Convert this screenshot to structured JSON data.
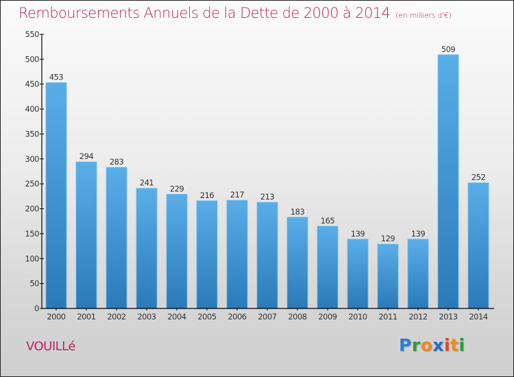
{
  "header": {
    "title": "Remboursements Annuels de la Dette de 2000 à 2014",
    "subtitle": "(en milliers d'€)"
  },
  "footer": {
    "commune": "VOUILLé",
    "logo": {
      "letters": [
        {
          "char": "P",
          "color": "#2a7fd4"
        },
        {
          "char": "r",
          "color": "#2a9a3a"
        },
        {
          "char": "o",
          "color": "#f08a1c"
        },
        {
          "char": "x",
          "color": "#1e6fc8"
        },
        {
          "char": "i",
          "color": "#e8481c"
        },
        {
          "char": "t",
          "color": "#f08a1c"
        },
        {
          "char": "i",
          "color": "#2a9a3a"
        }
      ]
    }
  },
  "colors": {
    "title": "#b8265e",
    "bar_top": "#5aaee8",
    "bar_bottom": "#2a7ab8",
    "axis": "#000000",
    "label": "#333333"
  },
  "chart_data": {
    "type": "bar",
    "title": "Remboursements Annuels de la Dette de 2000 à 2014",
    "subtitle": "(en milliers d'€)",
    "xlabel": "",
    "ylabel": "",
    "categories": [
      "2000",
      "2001",
      "2002",
      "2003",
      "2004",
      "2005",
      "2006",
      "2007",
      "2008",
      "2009",
      "2010",
      "2011",
      "2012",
      "2013",
      "2014"
    ],
    "values": [
      453,
      294,
      283,
      241,
      229,
      216,
      217,
      213,
      183,
      165,
      139,
      129,
      139,
      509,
      252
    ],
    "ylim": [
      0,
      550
    ],
    "yticks": [
      0,
      50,
      100,
      150,
      200,
      250,
      300,
      350,
      400,
      450,
      500,
      550
    ],
    "grid": false,
    "legend": "none",
    "data_labels": true
  }
}
